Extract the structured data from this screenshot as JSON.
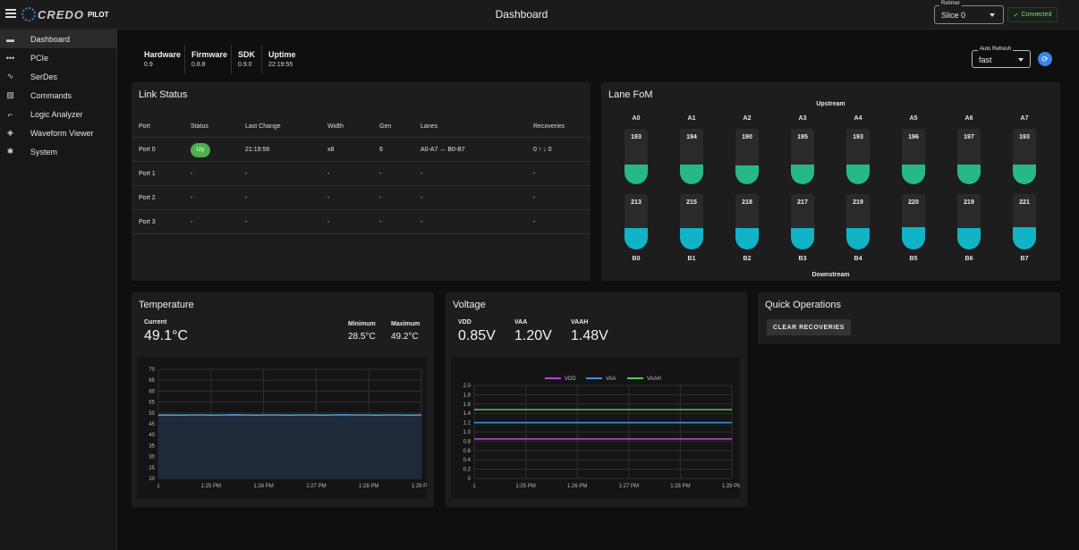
{
  "app": {
    "brand": "CREDO",
    "product": "PILOT",
    "title": "Dashboard"
  },
  "retimer": {
    "label": "Retimer",
    "value": "Slice 0"
  },
  "connection": {
    "check": "✓",
    "label": "Connected"
  },
  "sidebar": {
    "items": [
      {
        "label": "Dashboard",
        "icon": "dashboard-icon",
        "active": true
      },
      {
        "label": "PCIe",
        "icon": "pcie-icon"
      },
      {
        "label": "SerDes",
        "icon": "serdes-icon"
      },
      {
        "label": "Commands",
        "icon": "commands-icon"
      },
      {
        "label": "Logic Analyzer",
        "icon": "logic-analyzer-icon"
      },
      {
        "label": "Waveform Viewer",
        "icon": "waveform-viewer-icon"
      },
      {
        "label": "System",
        "icon": "system-icon"
      }
    ]
  },
  "summary": [
    {
      "label": "Hardware",
      "value": "0.9"
    },
    {
      "label": "Firmware",
      "value": "0.8.8"
    },
    {
      "label": "SDK",
      "value": "0.9.0"
    },
    {
      "label": "Uptime",
      "value": "22:19:55"
    }
  ],
  "auto_refresh": {
    "label": "Auto Refresh",
    "value": "fast"
  },
  "link_status": {
    "title": "Link Status",
    "columns": [
      "Port",
      "Status",
      "Last Change",
      "Width",
      "Gen",
      "Lanes",
      "Recoveries"
    ],
    "rows": [
      {
        "port": "Port 0",
        "status": "Up",
        "last_change": "21:19:56",
        "width": "x8",
        "gen": "6",
        "lanes": "A0-A7 ↔ B0-B7",
        "recoveries": "0 ↑ ↓ 0"
      },
      {
        "port": "Port 1",
        "status": "-",
        "last_change": "-",
        "width": "-",
        "gen": "-",
        "lanes": "-",
        "recoveries": "-"
      },
      {
        "port": "Port 2",
        "status": "-",
        "last_change": "-",
        "width": "-",
        "gen": "-",
        "lanes": "-",
        "recoveries": "-"
      },
      {
        "port": "Port 3",
        "status": "-",
        "last_change": "-",
        "width": "-",
        "gen": "-",
        "lanes": "-",
        "recoveries": "-"
      }
    ]
  },
  "lane_fom": {
    "title": "Lane FoM",
    "upstream_label": "Upstream",
    "downstream_label": "Downstream",
    "upstream": [
      {
        "lane": "A0",
        "value": 193
      },
      {
        "lane": "A1",
        "value": 194
      },
      {
        "lane": "A2",
        "value": 190
      },
      {
        "lane": "A3",
        "value": 195
      },
      {
        "lane": "A4",
        "value": 193
      },
      {
        "lane": "A5",
        "value": 196
      },
      {
        "lane": "A6",
        "value": 197
      },
      {
        "lane": "A7",
        "value": 193
      }
    ],
    "downstream": [
      {
        "lane": "B0",
        "value": 213
      },
      {
        "lane": "B1",
        "value": 215
      },
      {
        "lane": "B2",
        "value": 218
      },
      {
        "lane": "B3",
        "value": 217
      },
      {
        "lane": "B4",
        "value": 219
      },
      {
        "lane": "B5",
        "value": 220
      },
      {
        "lane": "B6",
        "value": 219
      },
      {
        "lane": "B7",
        "value": 221
      }
    ],
    "scale_max": 255,
    "upstream_color": "#27b88a",
    "downstream_color": "#10b4c6"
  },
  "temperature": {
    "title": "Temperature",
    "current_label": "Current",
    "current": "49.1°C",
    "min_label": "Minimum",
    "min": "28.5°C",
    "max_label": "Maximum",
    "max": "49.2°C"
  },
  "voltage": {
    "title": "Voltage",
    "readings": [
      {
        "label": "VDD",
        "value": "0.85V"
      },
      {
        "label": "VAA",
        "value": "1.20V"
      },
      {
        "label": "VAAH",
        "value": "1.48V"
      }
    ]
  },
  "quick_ops": {
    "title": "Quick Operations",
    "clear_label": "CLEAR RECOVERIES"
  },
  "chart_data": [
    {
      "type": "area",
      "yticks": [
        "70",
        "65",
        "60",
        "55",
        "50",
        "45",
        "40",
        "35",
        "30",
        "25",
        "20"
      ],
      "xticks": [
        "1",
        "1:25 PM",
        "1:26 PM",
        "1:27 PM",
        "1:28 PM",
        "1:29 PM"
      ],
      "ylim": [
        20,
        70
      ],
      "series": [
        {
          "values": [
            49.0,
            49.1,
            49.0,
            49.1,
            49.1,
            49.0,
            49.1,
            49.2,
            49.1,
            49.0,
            49.1,
            49.1,
            49.0,
            49.1,
            49.1,
            49.0,
            49.1,
            49.2,
            49.1,
            49.1,
            49.0,
            49.1,
            49.1,
            49.0,
            49.1
          ],
          "color": "#5b9bd5"
        }
      ],
      "grid": true
    },
    {
      "type": "line",
      "yticks": [
        "2.0",
        "1.8",
        "1.6",
        "1.4",
        "1.2",
        "1.0",
        "0.8",
        "0.6",
        "0.4",
        "0.2",
        "0"
      ],
      "xticks": [
        "1",
        "1:25 PM",
        "1:26 PM",
        "1:27 PM",
        "1:28 PM",
        "1:29 PM"
      ],
      "ylim": [
        0,
        2.0
      ],
      "series": [
        {
          "name": "VDD",
          "values": [
            0.85,
            0.85,
            0.85,
            0.85,
            0.85,
            0.85,
            0.85,
            0.85,
            0.85,
            0.85,
            0.85,
            0.85
          ],
          "color": "#b04bc8"
        },
        {
          "name": "VAA",
          "values": [
            1.2,
            1.2,
            1.2,
            1.2,
            1.2,
            1.2,
            1.2,
            1.2,
            1.2,
            1.2,
            1.2,
            1.2
          ],
          "color": "#3d8fe0"
        },
        {
          "name": "VAAH",
          "values": [
            1.48,
            1.48,
            1.48,
            1.48,
            1.48,
            1.48,
            1.48,
            1.48,
            1.48,
            1.48,
            1.48,
            1.48
          ],
          "color": "#5cc45c"
        }
      ],
      "legend": "top",
      "grid": true
    }
  ]
}
